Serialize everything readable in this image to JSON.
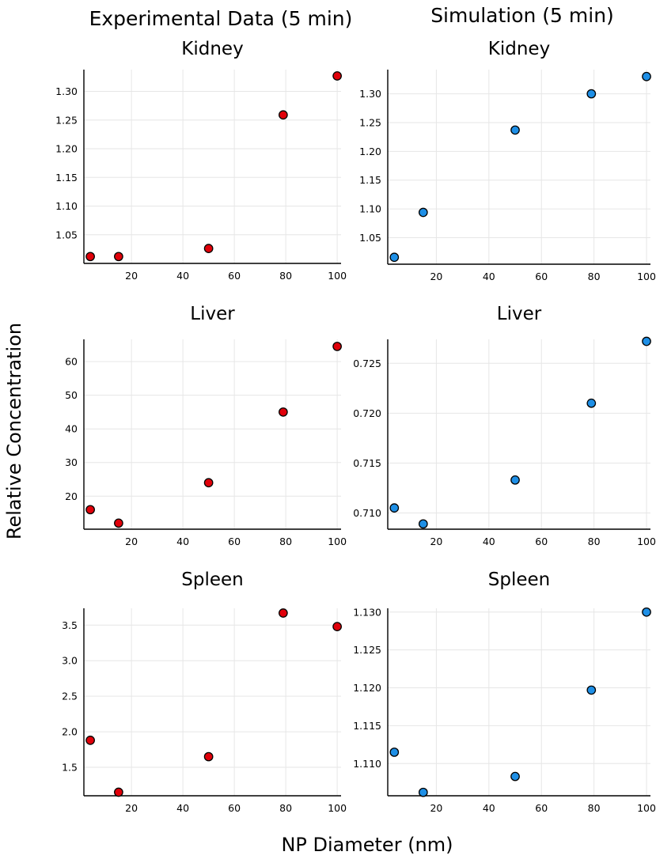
{
  "figure": {
    "column_titles": [
      "Experimental Data (5 min)",
      "Simulation (5 min)"
    ],
    "ylabel": "Relative Concentration",
    "xlabel": "NP Diameter (nm)"
  },
  "chart_data": [
    {
      "type": "scatter",
      "title": "Kidney",
      "column": "Experimental Data (5 min)",
      "color": "#e0000a",
      "x": [
        4,
        15,
        50,
        79,
        100
      ],
      "y": [
        1.012,
        1.012,
        1.026,
        1.259,
        1.327
      ],
      "xlim": [
        1.5,
        101.5
      ],
      "ylim": [
        1.0,
        1.338
      ],
      "xticks": [
        20,
        40,
        60,
        80,
        100
      ],
      "yticks": [
        1.05,
        1.1,
        1.15,
        1.2,
        1.25,
        1.3
      ],
      "ytick_labels": [
        "1.05",
        "1.10",
        "1.15",
        "1.20",
        "1.25",
        "1.30"
      ],
      "grid": true,
      "xlabel": "",
      "ylabel": ""
    },
    {
      "type": "scatter",
      "title": "Kidney",
      "column": "Simulation (5 min)",
      "color": "#1e8fe6",
      "x": [
        4,
        15,
        50,
        79,
        100
      ],
      "y": [
        1.016,
        1.094,
        1.237,
        1.3,
        1.33
      ],
      "xlim": [
        1.5,
        101.5
      ],
      "ylim": [
        1.004,
        1.342
      ],
      "xticks": [
        20,
        40,
        60,
        80,
        100
      ],
      "yticks": [
        1.05,
        1.1,
        1.15,
        1.2,
        1.25,
        1.3
      ],
      "ytick_labels": [
        "1.05",
        "1.10",
        "1.15",
        "1.20",
        "1.25",
        "1.30"
      ],
      "grid": true,
      "xlabel": "",
      "ylabel": ""
    },
    {
      "type": "scatter",
      "title": "Liver",
      "column": "Experimental Data (5 min)",
      "color": "#e0000a",
      "x": [
        4,
        15,
        50,
        79,
        100
      ],
      "y": [
        16,
        12,
        24,
        45,
        64.5
      ],
      "xlim": [
        1.5,
        101.5
      ],
      "ylim": [
        10.2,
        66.6
      ],
      "xticks": [
        20,
        40,
        60,
        80,
        100
      ],
      "yticks": [
        20,
        30,
        40,
        50,
        60
      ],
      "ytick_labels": [
        "20",
        "30",
        "40",
        "50",
        "60"
      ],
      "grid": true,
      "xlabel": "",
      "ylabel": ""
    },
    {
      "type": "scatter",
      "title": "Liver",
      "column": "Simulation (5 min)",
      "color": "#1e8fe6",
      "x": [
        4,
        15,
        50,
        79,
        100
      ],
      "y": [
        0.7105,
        0.7089,
        0.7133,
        0.721,
        0.7272
      ],
      "xlim": [
        1.5,
        101.5
      ],
      "ylim": [
        0.70837,
        0.7274
      ],
      "xticks": [
        20,
        40,
        60,
        80,
        100
      ],
      "yticks": [
        0.71,
        0.715,
        0.72,
        0.725
      ],
      "ytick_labels": [
        "0.710",
        "0.715",
        "0.720",
        "0.725"
      ],
      "grid": true,
      "xlabel": "",
      "ylabel": ""
    },
    {
      "type": "scatter",
      "title": "Spleen",
      "column": "Experimental Data (5 min)",
      "color": "#e0000a",
      "x": [
        4,
        15,
        50,
        79,
        100
      ],
      "y": [
        1.88,
        1.15,
        1.65,
        3.67,
        3.48
      ],
      "xlim": [
        1.5,
        101.5
      ],
      "ylim": [
        1.1,
        3.737
      ],
      "xticks": [
        20,
        40,
        60,
        80,
        100
      ],
      "yticks": [
        1.5,
        2.0,
        2.5,
        3.0,
        3.5
      ],
      "ytick_labels": [
        "1.5",
        "2.0",
        "2.5",
        "3.0",
        "3.5"
      ],
      "grid": true,
      "xlabel": "",
      "ylabel": ""
    },
    {
      "type": "scatter",
      "title": "Spleen",
      "column": "Simulation (5 min)",
      "color": "#1e8fe6",
      "x": [
        4,
        15,
        50,
        79,
        100
      ],
      "y": [
        1.1115,
        1.1062,
        1.1083,
        1.1197,
        1.13
      ],
      "xlim": [
        1.5,
        101.5
      ],
      "ylim": [
        1.10575,
        1.1305
      ],
      "xticks": [
        20,
        40,
        60,
        80,
        100
      ],
      "yticks": [
        1.11,
        1.115,
        1.12,
        1.125,
        1.13
      ],
      "ytick_labels": [
        "1.110",
        "1.115",
        "1.120",
        "1.125",
        "1.130"
      ],
      "grid": true,
      "xlabel": "",
      "ylabel": ""
    }
  ]
}
